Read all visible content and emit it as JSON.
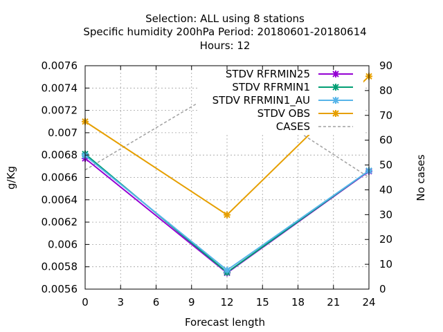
{
  "title": {
    "line1": "Selection: ALL using     8 stations",
    "line2": "Specific humidity 200hPa   Period: 20180601-20180614",
    "line3": "Hours:  12"
  },
  "chart_data": {
    "type": "line",
    "xlabel": "Forecast length",
    "ylabel": "g/Kg",
    "y2label": "No cases",
    "xlim": [
      0,
      24
    ],
    "ylim": [
      0.0056,
      0.0076
    ],
    "y2lim": [
      0,
      90
    ],
    "x_ticks": [
      "0",
      "3",
      "6",
      "9",
      "12",
      "15",
      "18",
      "21",
      "24"
    ],
    "y_ticks": [
      "0.0056",
      "0.0058",
      "0.006",
      "0.0062",
      "0.0064",
      "0.0066",
      "0.0068",
      "0.007",
      "0.0072",
      "0.0074",
      "0.0076"
    ],
    "y2_ticks": [
      "0",
      "10",
      "20",
      "30",
      "40",
      "50",
      "60",
      "70",
      "80",
      "90"
    ],
    "grid": true,
    "legend_position": "top-right",
    "x": [
      0,
      12,
      24
    ],
    "series": [
      {
        "name": "STDV RFRMIN25",
        "axis": "y",
        "values": [
          0.00677,
          0.005745,
          0.006655
        ],
        "color": "#9400d3",
        "marker": "x"
      },
      {
        "name": "STDV RFRMIN1",
        "axis": "y",
        "values": [
          0.00681,
          0.00575,
          0.00666
        ],
        "color": "#009e73",
        "marker": "x"
      },
      {
        "name": "STDV RFRMIN1_AU",
        "axis": "y",
        "values": [
          0.006795,
          0.00577,
          0.00666
        ],
        "color": "#56b4e9",
        "marker": "x"
      },
      {
        "name": "STDV OBS",
        "axis": "y",
        "values": [
          0.0071,
          0.006265,
          0.007505
        ],
        "color": "#e69f00",
        "marker": "x"
      },
      {
        "name": "CASES",
        "axis": "y2",
        "values": [
          48,
          82,
          45
        ],
        "color": "#a0a0a0",
        "dashed": true
      }
    ]
  }
}
